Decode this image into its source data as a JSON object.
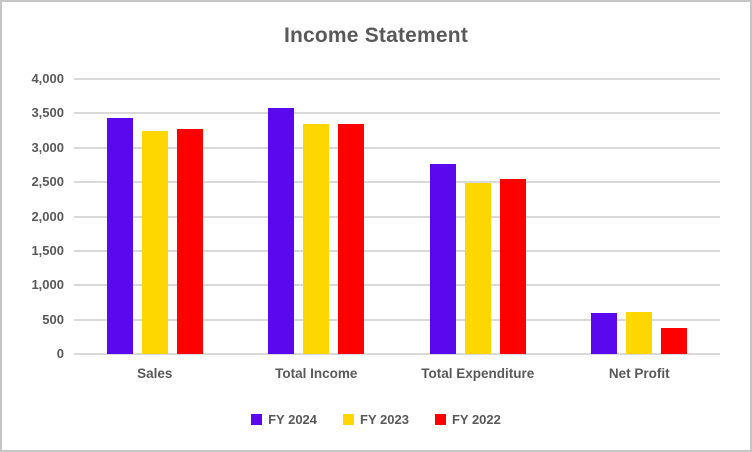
{
  "chart_data": {
    "type": "bar",
    "title": "Income Statement",
    "categories": [
      "Sales",
      "Total Income",
      "Total Expenditure",
      "Net Profit"
    ],
    "series": [
      {
        "name": "FY 2024",
        "color": "#5a08ee",
        "values": [
          3440,
          3580,
          2760,
          590
        ]
      },
      {
        "name": "FY 2023",
        "color": "#ffd700",
        "values": [
          3240,
          3350,
          2490,
          615
        ]
      },
      {
        "name": "FY 2022",
        "color": "#ff0000",
        "values": [
          3270,
          3340,
          2550,
          385
        ]
      }
    ],
    "xlabel": "",
    "ylabel": "",
    "ylim": [
      0,
      4000
    ],
    "ytick_step": 500,
    "ytick_labels": [
      "0",
      "500",
      "1,000",
      "1,500",
      "2,000",
      "2,500",
      "3,000",
      "3,500",
      "4,000"
    ],
    "grid": true,
    "legend_position": "bottom"
  },
  "colors": {
    "text": "#595959",
    "gridline": "#d9d9d9",
    "frame_border": "#c6c6c6",
    "background": "#ffffff"
  }
}
